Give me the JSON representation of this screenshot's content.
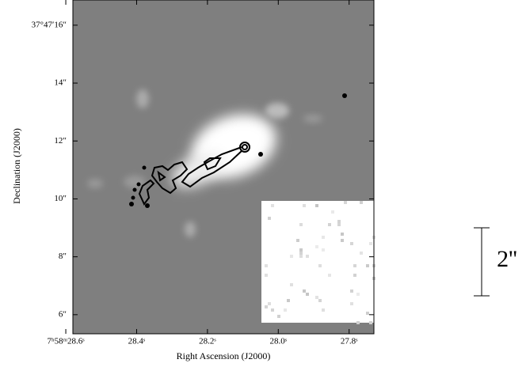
{
  "chart_data": {
    "type": "image",
    "xlabel": "Right Ascension (J2000)",
    "ylabel": "Declination (J2000)",
    "xlim": [
      28.58,
      27.73
    ],
    "ylim": [
      5.34,
      16.87
    ],
    "xticks": [
      {
        "value": 28.6,
        "label": "7ʰ58ᵐ28.6ˢ"
      },
      {
        "value": 28.4,
        "label": "28.4ˢ"
      },
      {
        "value": 28.2,
        "label": "28.2ˢ"
      },
      {
        "value": 28.0,
        "label": "28.0ˢ"
      },
      {
        "value": 27.8,
        "label": "27.8ˢ"
      }
    ],
    "yticks": [
      {
        "value": 16,
        "label": "37°47′16″"
      },
      {
        "value": 14,
        "label": "14″"
      },
      {
        "value": 12,
        "label": "12″"
      },
      {
        "value": 10,
        "label": "10″"
      },
      {
        "value": 8,
        "label": "8″"
      },
      {
        "value": 6,
        "label": "6″"
      }
    ],
    "scale_bar_label": "2''"
  }
}
